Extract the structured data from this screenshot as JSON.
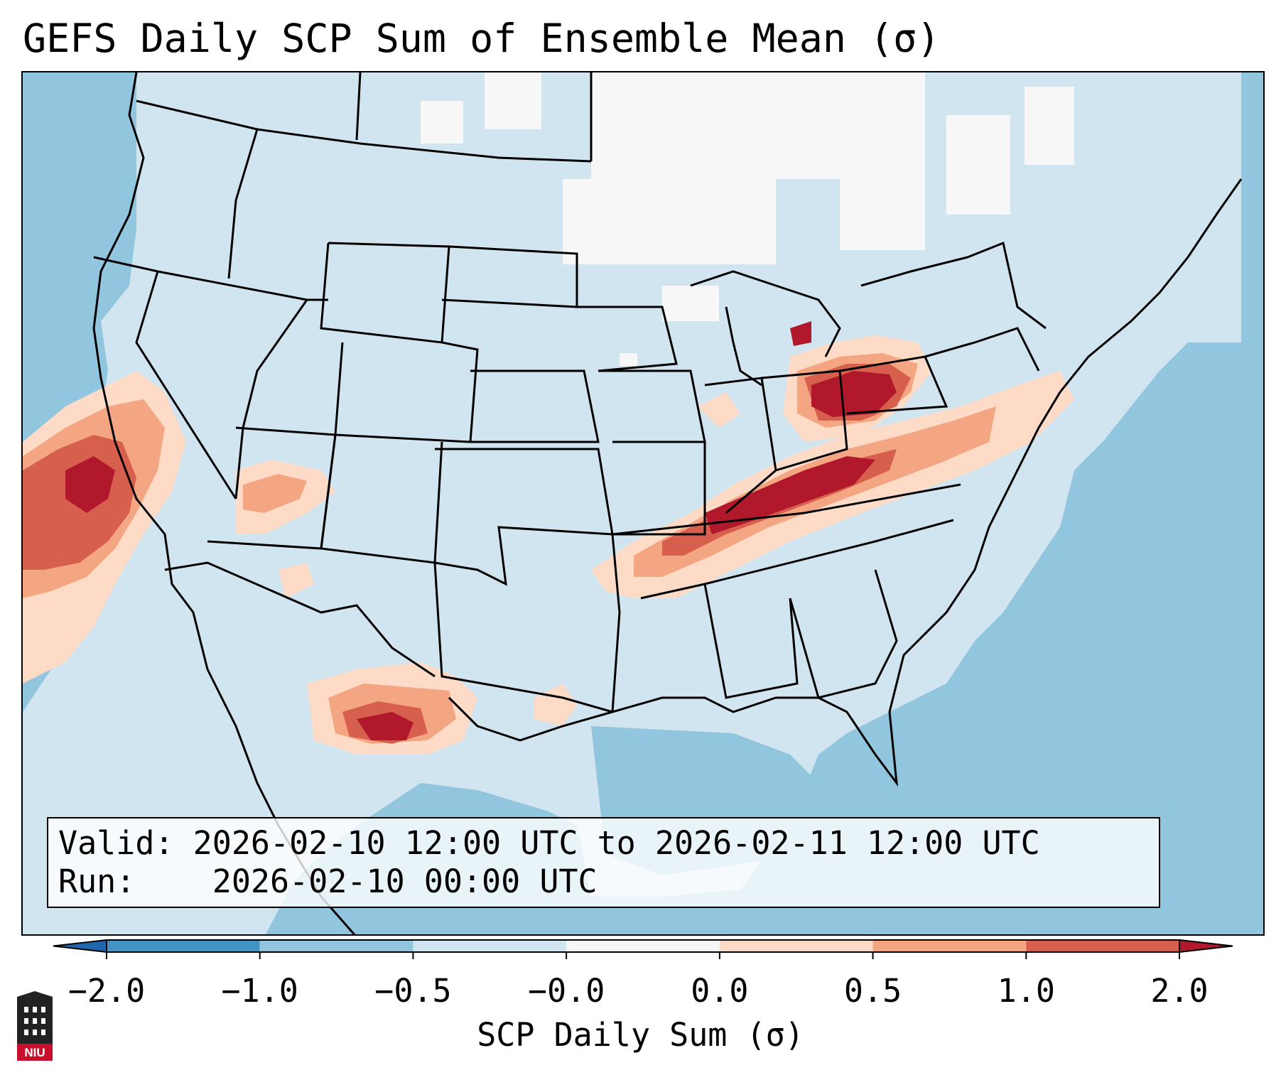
{
  "title": "GEFS Daily SCP Sum of Ensemble Mean (σ)",
  "info": {
    "valid_label": "Valid:",
    "valid_value": "2026-02-10 12:00 UTC to 2026-02-11 12:00 UTC",
    "run_label": "Run:",
    "run_value": "2026-02-10 00:00 UTC"
  },
  "colorbar": {
    "label": "SCP Daily Sum (σ)",
    "ticks": [
      "−2.0",
      "−1.0",
      "−0.5",
      "−0.0",
      "0.0",
      "0.5",
      "1.0",
      "2.0"
    ],
    "colors": [
      "#4393c3",
      "#92c5de",
      "#d1e5f0",
      "#f7f7f7",
      "#fddbc7",
      "#f4a582",
      "#d6604d"
    ],
    "extend_low_color": "#2166ac",
    "extend_high_color": "#b2182b"
  },
  "logo": {
    "text": "NIU",
    "icon": "university-tower-icon"
  },
  "colors": {
    "ocean": "#92c5de",
    "land": "#d1e5f0",
    "neutral": "#f7f7f7",
    "low_pos": "#fddbc7",
    "mid_pos": "#f4a582",
    "high_pos": "#d6604d",
    "max_pos": "#b2182b"
  }
}
